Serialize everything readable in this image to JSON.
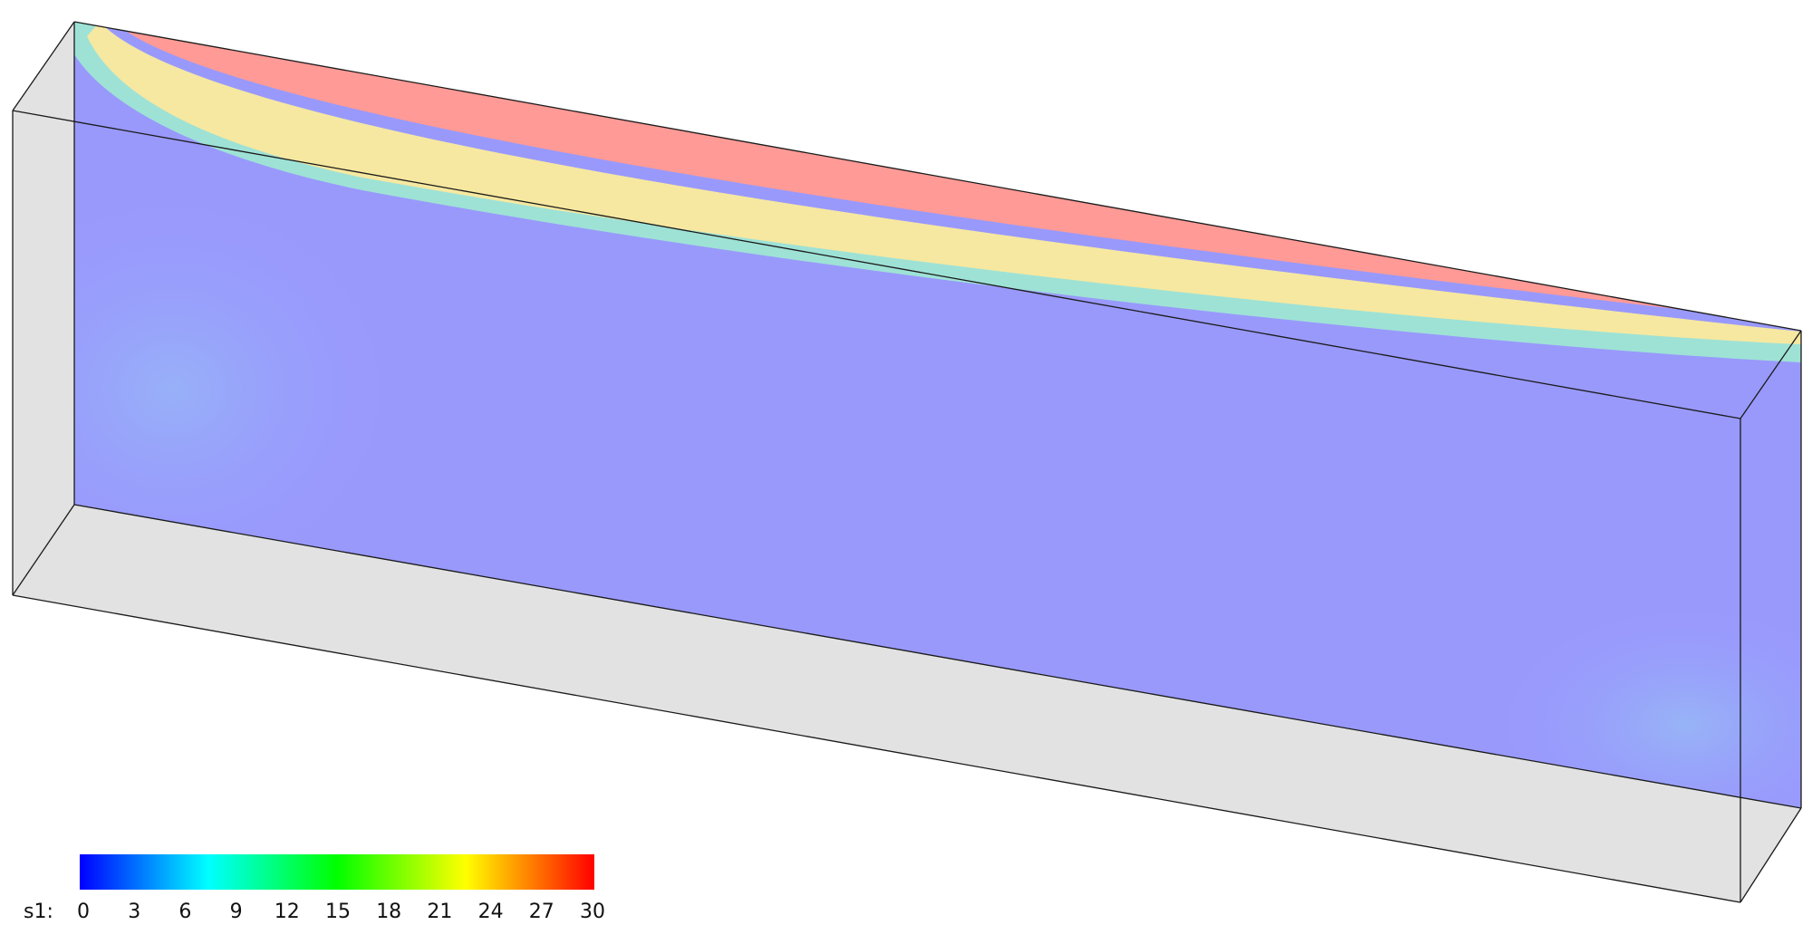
{
  "colorbar": {
    "variable_label": "s1:",
    "tick_labels": [
      "0",
      "3",
      "6",
      "9",
      "12",
      "15",
      "18",
      "21",
      "24",
      "27",
      "30"
    ],
    "min": 0,
    "max": 30,
    "gradient_colors": [
      "#0000ff",
      "#0080ff",
      "#00ffff",
      "#00ff80",
      "#00ff00",
      "#80ff00",
      "#ffff00",
      "#ff8000",
      "#ff0000"
    ]
  },
  "field_colors": {
    "background_value_fill": "#9999fc",
    "high_value_fill": "#ff9a96",
    "box_face_fill": "#e2e2e2",
    "edge": "#1a1a1a"
  }
}
